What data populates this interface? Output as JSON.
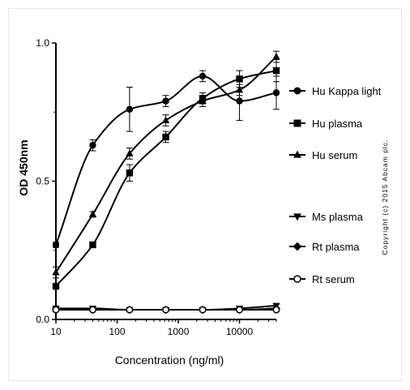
{
  "chart_data": {
    "type": "scatter",
    "title": "",
    "xlabel": "Concentration (ng/ml)",
    "ylabel": "OD 450nm",
    "xscale": "log",
    "xlim": [
      10,
      40000
    ],
    "ylim": [
      0,
      1.0
    ],
    "xticks": [
      10,
      100,
      1000,
      10000
    ],
    "xtick_labels": [
      "10",
      "100",
      "1000",
      "10000"
    ],
    "yticks": [
      0.0,
      0.5,
      1.0
    ],
    "ytick_labels": [
      "0.0",
      "0.5",
      "1.0"
    ],
    "grid": false,
    "legend_position": "right",
    "series": [
      {
        "name": "Hu Kappa light",
        "marker": "circle",
        "x": [
          10,
          40,
          160,
          625,
          2500,
          10000,
          40000
        ],
        "y": [
          0.27,
          0.63,
          0.76,
          0.79,
          0.88,
          0.79,
          0.82
        ],
        "err": [
          0.01,
          0.02,
          0.08,
          0.02,
          0.02,
          0.07,
          0.06
        ],
        "fit": [
          0.25,
          0.83,
          0.0,
          0.0,
          0.0,
          0.0
        ]
      },
      {
        "name": "Hu plasma",
        "marker": "square",
        "x": [
          10,
          40,
          160,
          625,
          2500,
          10000,
          40000
        ],
        "y": [
          0.12,
          0.27,
          0.53,
          0.66,
          0.8,
          0.87,
          0.9
        ],
        "err": [
          0.01,
          0.01,
          0.03,
          0.02,
          0.02,
          0.03,
          0.04
        ]
      },
      {
        "name": "Hu serum",
        "marker": "triangle-up",
        "x": [
          10,
          40,
          160,
          625,
          2500,
          10000,
          40000
        ],
        "y": [
          0.17,
          0.38,
          0.6,
          0.72,
          0.79,
          0.83,
          0.95
        ],
        "err": [
          0.02,
          0.01,
          0.02,
          0.02,
          0.02,
          0.02,
          0.02
        ]
      },
      {
        "name": "Ms plasma",
        "marker": "triangle-down",
        "x": [
          10,
          40,
          160,
          625,
          2500,
          10000,
          40000
        ],
        "y": [
          0.04,
          0.04,
          0.035,
          0.035,
          0.035,
          0.04,
          0.05
        ],
        "err": [
          0.005,
          0.005,
          0.005,
          0.005,
          0.005,
          0.005,
          0.005
        ]
      },
      {
        "name": "Rt plasma",
        "marker": "diamond",
        "x": [
          10,
          40,
          160,
          625,
          2500,
          10000,
          40000
        ],
        "y": [
          0.04,
          0.035,
          0.035,
          0.035,
          0.035,
          0.035,
          0.04
        ],
        "err": [
          0.005,
          0.005,
          0.005,
          0.005,
          0.005,
          0.005,
          0.005
        ]
      },
      {
        "name": "Rt serum",
        "marker": "circle-open",
        "x": [
          10,
          40,
          160,
          625,
          2500,
          10000,
          40000
        ],
        "y": [
          0.035,
          0.035,
          0.035,
          0.035,
          0.035,
          0.035,
          0.035
        ],
        "err": [
          0.005,
          0.005,
          0.005,
          0.005,
          0.005,
          0.005,
          0.005
        ]
      }
    ],
    "annotations": [
      "Copyright (c) 2015 Abcam plc."
    ]
  }
}
